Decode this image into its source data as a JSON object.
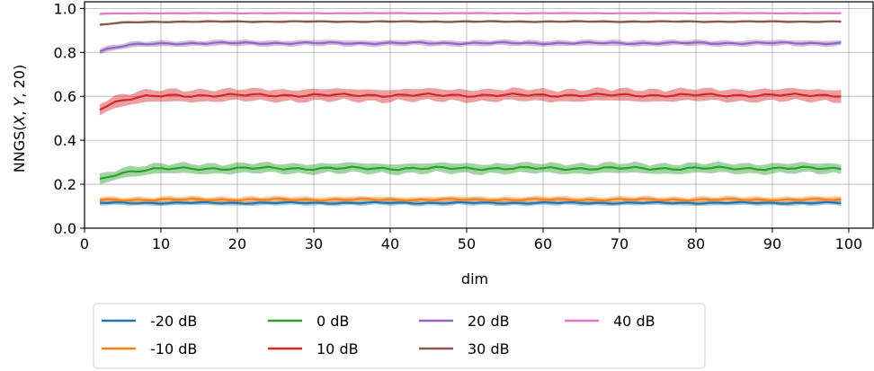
{
  "chart_data": {
    "type": "line",
    "title": "",
    "xlabel": "dim",
    "ylabel": "NNGS(X, Y, 20)",
    "ylabel_parts": {
      "prefix": "NNGS(",
      "x": "X",
      "sep1": ", ",
      "y": "Y",
      "sep2": ", ",
      "k": "20",
      "suffix": ")"
    },
    "xlim": [
      0,
      103.3
    ],
    "ylim": [
      0,
      1.03
    ],
    "xticks": [
      0,
      10,
      20,
      30,
      40,
      50,
      60,
      70,
      80,
      90,
      100
    ],
    "xtick_labels": [
      "0",
      "10",
      "20",
      "30",
      "40",
      "50",
      "60",
      "70",
      "80",
      "90",
      "100"
    ],
    "yticks": [
      0.0,
      0.2,
      0.4,
      0.6,
      0.8,
      1.0
    ],
    "ytick_labels": [
      "0.0",
      "0.2",
      "0.4",
      "0.6",
      "0.8",
      "1.0"
    ],
    "grid": true,
    "legend_position": "bottom-left, below axes",
    "x_range": [
      2,
      99
    ],
    "series": [
      {
        "name": "-20 dB",
        "color": "#1f77b4",
        "start": 0.115,
        "end": 0.115,
        "band": 0.012,
        "wiggle": 0.004
      },
      {
        "name": "-10 dB",
        "color": "#ff7f0e",
        "start": 0.128,
        "end": 0.13,
        "band": 0.014,
        "wiggle": 0.005
      },
      {
        "name": "0 dB",
        "color": "#2ca02c",
        "start": 0.22,
        "end": 0.272,
        "band": 0.025,
        "wiggle": 0.008
      },
      {
        "name": "10 dB",
        "color": "#d62728",
        "start": 0.545,
        "end": 0.605,
        "band": 0.03,
        "wiggle": 0.008
      },
      {
        "name": "20 dB",
        "color": "#9467bd",
        "start": 0.805,
        "end": 0.842,
        "band": 0.014,
        "wiggle": 0.005
      },
      {
        "name": "30 dB",
        "color": "#8c564b",
        "start": 0.925,
        "end": 0.94,
        "band": 0.006,
        "wiggle": 0.002
      },
      {
        "name": "40 dB",
        "color": "#e377c2",
        "start": 0.975,
        "end": 0.978,
        "band": 0.003,
        "wiggle": 0.001
      }
    ]
  }
}
